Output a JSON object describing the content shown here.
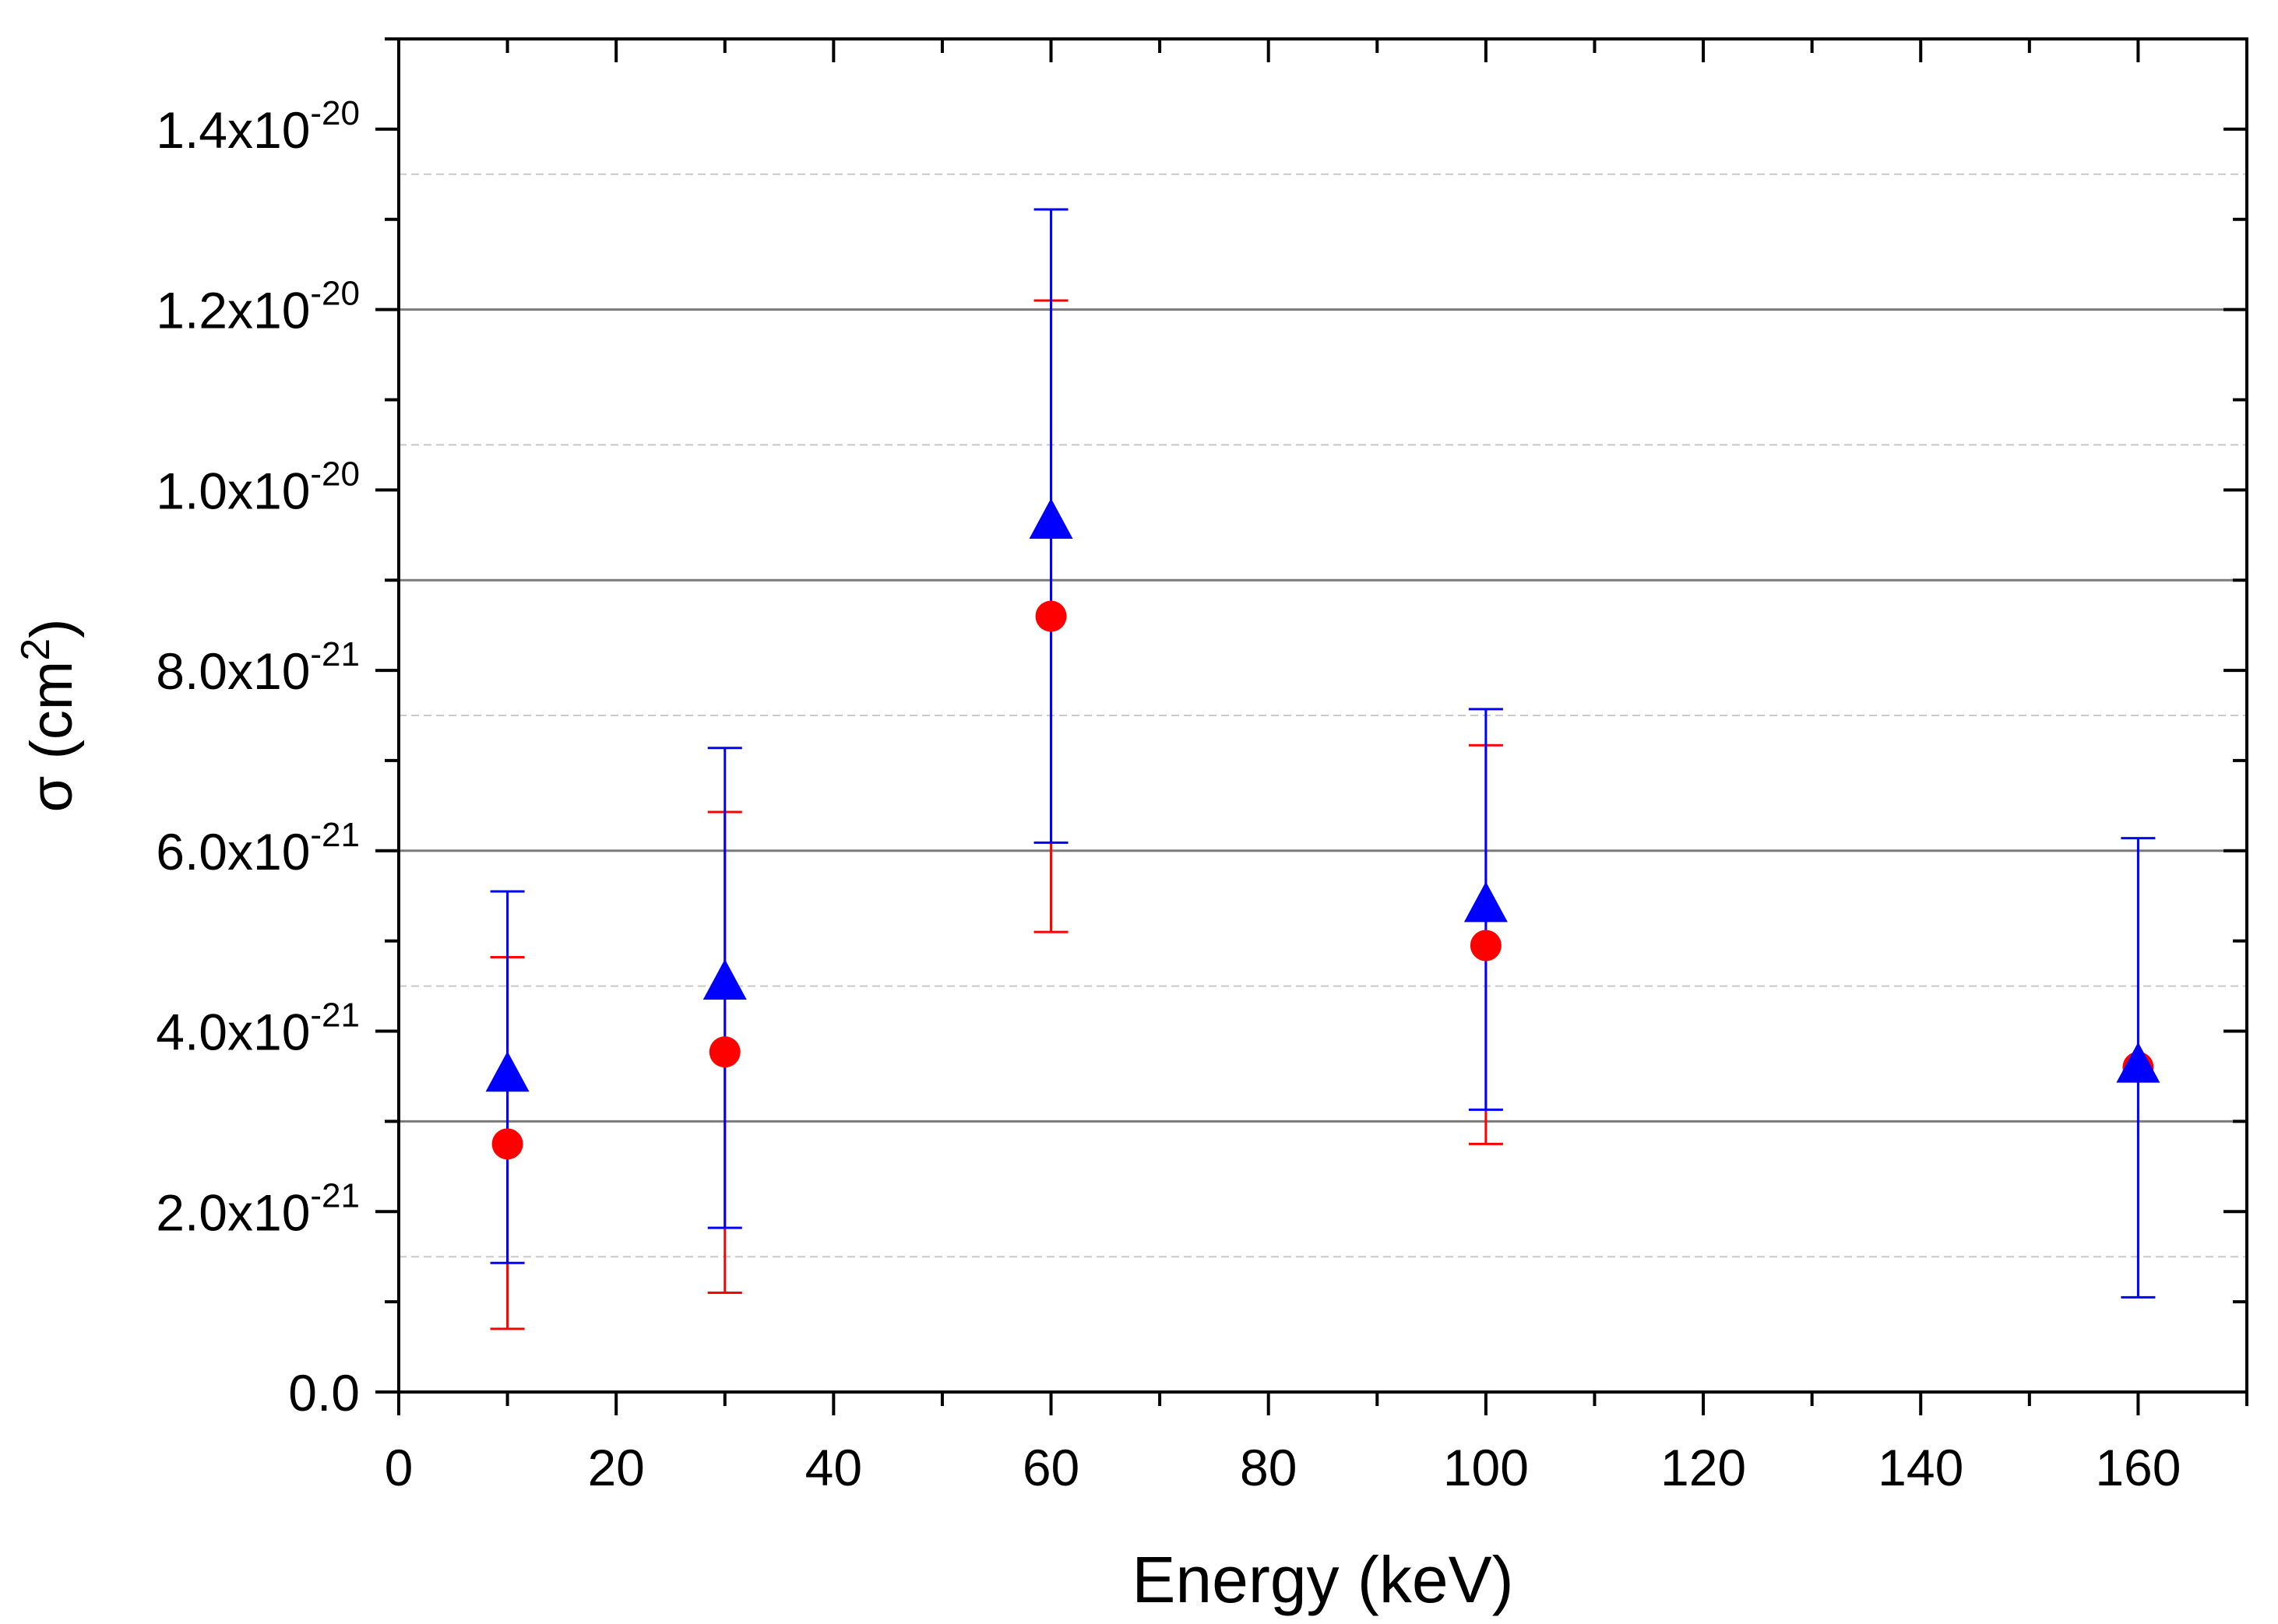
{
  "chart_data": {
    "type": "scatter",
    "title": "",
    "xlabel": "Energy (keV)",
    "ylabel_main": "σ (cm",
    "ylabel_sup": "2",
    "ylabel_tail": ")",
    "xlim": [
      0,
      170
    ],
    "ylim": [
      0,
      1.5e-20
    ],
    "x_ticks": [
      {
        "value": 0,
        "label": "0"
      },
      {
        "value": 20,
        "label": "20"
      },
      {
        "value": 40,
        "label": "40"
      },
      {
        "value": 60,
        "label": "60"
      },
      {
        "value": 80,
        "label": "80"
      },
      {
        "value": 100,
        "label": "100"
      },
      {
        "value": 120,
        "label": "120"
      },
      {
        "value": 140,
        "label": "140"
      },
      {
        "value": 160,
        "label": "160"
      }
    ],
    "x_minor_step": 10,
    "y_ticks": [
      {
        "value": 0,
        "mantissa": "0.0",
        "exponent": ""
      },
      {
        "value": 2e-21,
        "mantissa": "2.0x10",
        "exponent": "-21"
      },
      {
        "value": 4e-21,
        "mantissa": "4.0x10",
        "exponent": "-21"
      },
      {
        "value": 6e-21,
        "mantissa": "6.0x10",
        "exponent": "-21"
      },
      {
        "value": 8e-21,
        "mantissa": "8.0x10",
        "exponent": "-21"
      },
      {
        "value": 1e-20,
        "mantissa": "1.0x10",
        "exponent": "-20"
      },
      {
        "value": 1.2e-20,
        "mantissa": "1.2x10",
        "exponent": "-20"
      },
      {
        "value": 1.4e-20,
        "mantissa": "1.4x10",
        "exponent": "-20"
      }
    ],
    "y_minor_step": 1e-21,
    "grid_major": [
      3e-21,
      6e-21,
      9e-21,
      1.2e-20
    ],
    "grid_minor": [
      1.5e-21,
      4.5e-21,
      7.5e-21,
      1.05e-20,
      1.35e-20
    ],
    "series": [
      {
        "name": "series-circles",
        "marker": "circle",
        "color": "#ff0000",
        "points": [
          {
            "x": 10,
            "y": 2.75e-21,
            "lo": 7e-22,
            "hi": 4.82e-21
          },
          {
            "x": 30,
            "y": 3.77e-21,
            "lo": 1.1e-21,
            "hi": 6.43e-21
          },
          {
            "x": 60,
            "y": 8.6e-21,
            "lo": 5.1e-21,
            "hi": 1.21e-20
          },
          {
            "x": 100,
            "y": 4.95e-21,
            "lo": 2.75e-21,
            "hi": 7.17e-21
          },
          {
            "x": 160,
            "y": 3.6e-21,
            "lo": 3.6e-21,
            "hi": 3.6e-21
          }
        ]
      },
      {
        "name": "series-triangles",
        "marker": "triangle",
        "color": "#0000ff",
        "points": [
          {
            "x": 10,
            "y": 3.5e-21,
            "lo": 1.43e-21,
            "hi": 5.55e-21
          },
          {
            "x": 30,
            "y": 4.52e-21,
            "lo": 1.82e-21,
            "hi": 7.14e-21
          },
          {
            "x": 60,
            "y": 9.63e-21,
            "lo": 6.09e-21,
            "hi": 1.311e-20
          },
          {
            "x": 100,
            "y": 5.38e-21,
            "lo": 3.13e-21,
            "hi": 7.57e-21
          },
          {
            "x": 160,
            "y": 3.6e-21,
            "lo": 1.05e-21,
            "hi": 6.14e-21
          }
        ]
      }
    ]
  }
}
